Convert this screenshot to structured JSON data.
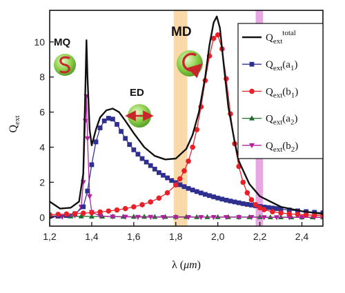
{
  "chart_data": {
    "type": "line",
    "xlabel_main": "λ (",
    "xlabel_unit": "μm",
    "xlabel_close": ")",
    "ylabel_main": "Q",
    "ylabel_sub": "ext",
    "xlim": [
      1.2,
      2.5
    ],
    "ylim": [
      -0.5,
      11.8
    ],
    "x_ticks": [
      1.2,
      1.4,
      1.6,
      1.8,
      2.0,
      2.2,
      2.4
    ],
    "x_tick_labels": [
      "1,2",
      "1,4",
      "1,6",
      "1,8",
      "2,0",
      "2,2",
      "2,4"
    ],
    "y_ticks": [
      0,
      2,
      4,
      6,
      8,
      10
    ],
    "y_tick_labels": [
      "0",
      "2",
      "4",
      "6",
      "8",
      "10"
    ],
    "highlight_bands": [
      {
        "x0": 1.79,
        "x1": 1.855,
        "color": "#f7cc8e"
      },
      {
        "x0": 2.18,
        "x1": 2.215,
        "color": "#e08ad8"
      }
    ],
    "annotations": {
      "mq": "MQ",
      "ed": "ED",
      "md": "MD"
    },
    "series": [
      {
        "key": "total",
        "name_main": "Q",
        "name_sub": "ext",
        "name_sup": "total",
        "color": "#111111",
        "marker": "none",
        "x": [
          1.2,
          1.25,
          1.3,
          1.34,
          1.36,
          1.37,
          1.375,
          1.38,
          1.39,
          1.4,
          1.42,
          1.44,
          1.47,
          1.5,
          1.53,
          1.56,
          1.6,
          1.65,
          1.7,
          1.75,
          1.8,
          1.85,
          1.88,
          1.91,
          1.94,
          1.96,
          1.98,
          1.995,
          2.01,
          2.03,
          2.05,
          2.08,
          2.1,
          2.15,
          2.2,
          2.3,
          2.4,
          2.5
        ],
        "y": [
          0.9,
          0.5,
          0.55,
          0.9,
          2.5,
          7.5,
          10.1,
          8.0,
          5.0,
          4.1,
          5.0,
          5.7,
          6.1,
          6.2,
          6.0,
          5.5,
          4.8,
          4.0,
          3.5,
          3.3,
          3.35,
          3.9,
          4.7,
          6.0,
          8.0,
          9.8,
          11.1,
          11.45,
          10.8,
          8.5,
          6.3,
          4.3,
          3.2,
          1.9,
          1.2,
          0.6,
          0.35,
          0.2
        ]
      },
      {
        "key": "a1",
        "name_main": "Q",
        "name_sub": "ext",
        "name_paren": "(a",
        "name_idx": "1",
        "name_end": ")",
        "color": "#2f2f8f",
        "marker": "square",
        "x": [
          1.2,
          1.24,
          1.28,
          1.32,
          1.36,
          1.38,
          1.4,
          1.42,
          1.44,
          1.46,
          1.48,
          1.5,
          1.52,
          1.54,
          1.56,
          1.58,
          1.6,
          1.62,
          1.64,
          1.66,
          1.68,
          1.7,
          1.72,
          1.74,
          1.76,
          1.78,
          1.8,
          1.82,
          1.84,
          1.86,
          1.88,
          1.9,
          1.92,
          1.94,
          1.96,
          1.98,
          2.0,
          2.02,
          2.04,
          2.06,
          2.08,
          2.1,
          2.12,
          2.14,
          2.16,
          2.18,
          2.2,
          2.22,
          2.24,
          2.26,
          2.28,
          2.3,
          2.34,
          2.38,
          2.42,
          2.46,
          2.5
        ],
        "y": [
          0.05,
          0.07,
          0.1,
          0.2,
          0.6,
          1.5,
          3.0,
          4.3,
          5.1,
          5.5,
          5.65,
          5.6,
          5.3,
          4.9,
          4.5,
          4.15,
          3.85,
          3.6,
          3.35,
          3.15,
          2.95,
          2.75,
          2.55,
          2.4,
          2.25,
          2.1,
          1.98,
          1.86,
          1.75,
          1.65,
          1.56,
          1.47,
          1.39,
          1.31,
          1.24,
          1.17,
          1.1,
          1.04,
          0.98,
          0.93,
          0.88,
          0.83,
          0.78,
          0.74,
          0.7,
          0.66,
          0.62,
          0.59,
          0.56,
          0.53,
          0.5,
          0.47,
          0.42,
          0.37,
          0.33,
          0.29,
          0.26
        ]
      },
      {
        "key": "b1",
        "name_main": "Q",
        "name_sub": "ext",
        "name_paren": "(b",
        "name_idx": "1",
        "name_end": ")",
        "color": "#e8202a",
        "marker": "circle",
        "x": [
          1.2,
          1.24,
          1.28,
          1.32,
          1.36,
          1.4,
          1.44,
          1.48,
          1.52,
          1.56,
          1.6,
          1.64,
          1.68,
          1.72,
          1.76,
          1.8,
          1.82,
          1.84,
          1.86,
          1.88,
          1.9,
          1.92,
          1.94,
          1.96,
          1.98,
          2.0,
          2.02,
          2.04,
          2.06,
          2.08,
          2.1,
          2.12,
          2.14,
          2.16,
          2.18,
          2.2,
          2.22,
          2.26,
          2.3,
          2.34,
          2.38,
          2.42,
          2.46,
          2.5
        ],
        "y": [
          0.15,
          0.17,
          0.19,
          0.21,
          0.24,
          0.27,
          0.31,
          0.36,
          0.42,
          0.5,
          0.6,
          0.72,
          0.88,
          1.1,
          1.4,
          1.85,
          2.2,
          2.65,
          3.2,
          4.0,
          5.0,
          6.3,
          7.8,
          9.2,
          10.2,
          10.4,
          9.6,
          7.9,
          5.9,
          4.2,
          2.9,
          2.0,
          1.4,
          1.0,
          0.72,
          0.55,
          0.44,
          0.32,
          0.25,
          0.2,
          0.17,
          0.14,
          0.12,
          0.1
        ]
      },
      {
        "key": "a2",
        "name_main": "Q",
        "name_sub": "ext",
        "name_paren": "(a",
        "name_idx": "2",
        "name_end": ")",
        "color": "#1e6b2a",
        "marker": "triangle-up",
        "x": [
          1.2,
          1.25,
          1.3,
          1.35,
          1.4,
          1.45,
          1.5,
          1.55,
          1.6,
          1.65,
          1.7,
          1.75,
          1.8,
          1.85,
          1.9,
          1.95,
          2.0,
          2.05,
          2.1,
          2.15,
          2.2,
          2.25,
          2.3,
          2.35,
          2.4,
          2.45,
          2.5
        ],
        "y": [
          0.08,
          0.07,
          0.06,
          0.06,
          0.05,
          0.05,
          0.05,
          0.04,
          0.04,
          0.04,
          0.03,
          0.03,
          0.03,
          0.03,
          0.02,
          0.02,
          0.02,
          0.02,
          0.02,
          0.02,
          0.02,
          0.01,
          0.01,
          0.01,
          0.01,
          0.01,
          0.01
        ]
      },
      {
        "key": "b2",
        "name_main": "Q",
        "name_sub": "ext",
        "name_paren": "(b",
        "name_idx": "2",
        "name_end": ")",
        "color": "#b0219f",
        "marker": "triangle-down",
        "x": [
          1.2,
          1.26,
          1.32,
          1.35,
          1.36,
          1.37,
          1.375,
          1.38,
          1.39,
          1.4,
          1.44,
          1.5,
          1.56,
          1.62,
          1.68,
          1.74,
          1.8,
          1.86,
          1.92,
          1.98,
          2.04,
          2.1,
          2.16,
          2.22,
          2.28,
          2.34,
          2.4,
          2.46,
          2.5
        ],
        "y": [
          0.02,
          0.03,
          0.1,
          0.6,
          2.0,
          5.5,
          6.9,
          4.5,
          1.2,
          0.3,
          0.08,
          0.04,
          0.03,
          0.02,
          0.02,
          0.01,
          0.01,
          0.01,
          0.01,
          0.01,
          0.01,
          0.01,
          0.01,
          0.0,
          0.0,
          0.0,
          0.0,
          0.0,
          0.0
        ]
      }
    ]
  }
}
